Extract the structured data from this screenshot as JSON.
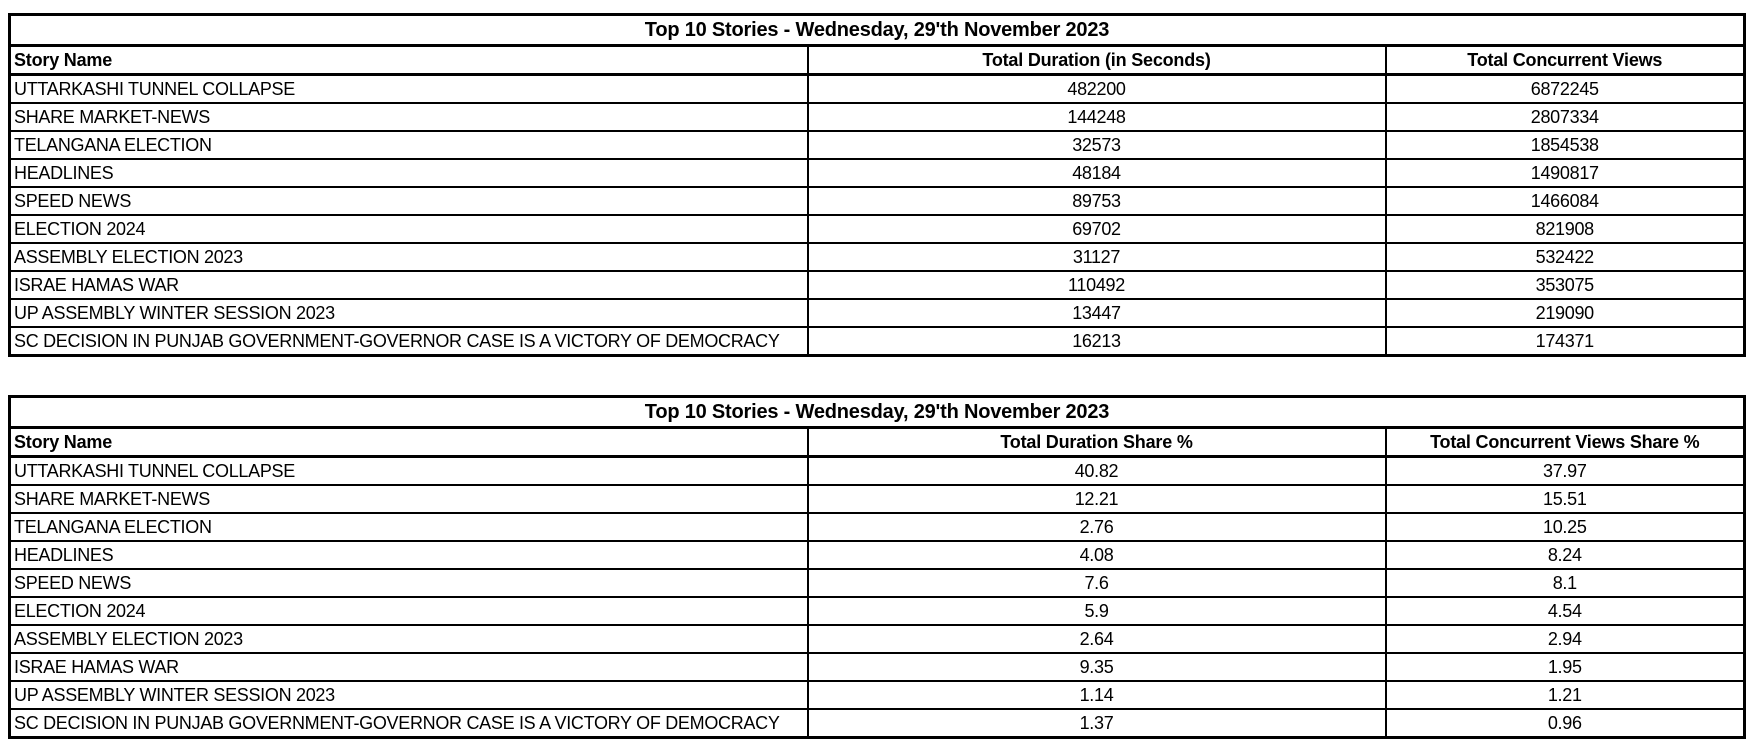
{
  "colors": {
    "background": "#ffffff",
    "border": "#000000",
    "text": "#000000"
  },
  "chart_data": [
    {
      "type": "table",
      "title": "Top 10 Stories - Wednesday, 29'th November 2023",
      "columns": [
        "Story Name",
        "Total Duration (in Seconds)",
        "Total Concurrent Views"
      ],
      "rows": [
        [
          "UTTARKASHI TUNNEL COLLAPSE",
          "482200",
          "6872245"
        ],
        [
          "SHARE MARKET-NEWS",
          "144248",
          "2807334"
        ],
        [
          "TELANGANA ELECTION",
          "32573",
          "1854538"
        ],
        [
          "HEADLINES",
          "48184",
          "1490817"
        ],
        [
          "SPEED NEWS",
          "89753",
          "1466084"
        ],
        [
          "ELECTION 2024",
          "69702",
          "821908"
        ],
        [
          "ASSEMBLY ELECTION 2023",
          "31127",
          "532422"
        ],
        [
          "ISRAE HAMAS WAR",
          "110492",
          "353075"
        ],
        [
          "UP ASSEMBLY WINTER SESSION 2023",
          "13447",
          "219090"
        ],
        [
          "SC DECISION IN PUNJAB GOVERNMENT-GOVERNOR CASE IS A VICTORY OF DEMOCRACY",
          "16213",
          "174371"
        ]
      ]
    },
    {
      "type": "table",
      "title": "Top 10 Stories - Wednesday, 29'th November 2023",
      "columns": [
        "Story Name",
        "Total Duration Share %",
        "Total Concurrent Views Share %"
      ],
      "rows": [
        [
          "UTTARKASHI TUNNEL COLLAPSE",
          "40.82",
          "37.97"
        ],
        [
          "SHARE MARKET-NEWS",
          "12.21",
          "15.51"
        ],
        [
          "TELANGANA ELECTION",
          "2.76",
          "10.25"
        ],
        [
          "HEADLINES",
          "4.08",
          "8.24"
        ],
        [
          "SPEED NEWS",
          "7.6",
          "8.1"
        ],
        [
          "ELECTION 2024",
          "5.9",
          "4.54"
        ],
        [
          "ASSEMBLY ELECTION 2023",
          "2.64",
          "2.94"
        ],
        [
          "ISRAE HAMAS WAR",
          "9.35",
          "1.95"
        ],
        [
          "UP ASSEMBLY WINTER SESSION 2023",
          "1.14",
          "1.21"
        ],
        [
          "SC DECISION IN PUNJAB GOVERNMENT-GOVERNOR CASE IS A VICTORY OF DEMOCRACY",
          "1.37",
          "0.96"
        ]
      ]
    }
  ]
}
